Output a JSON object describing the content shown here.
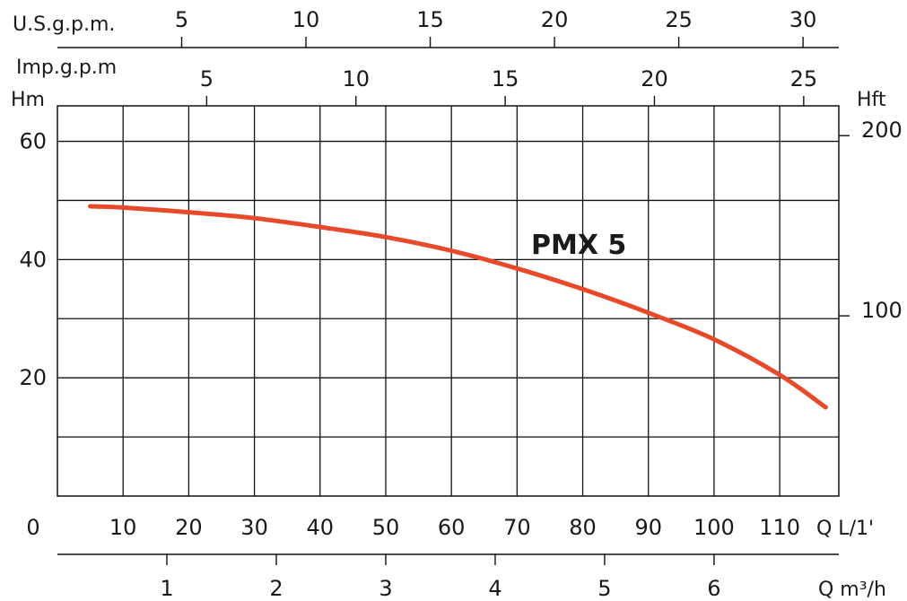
{
  "chart_data": {
    "type": "line",
    "title": "",
    "series": [
      {
        "name": "PMX 5",
        "color": "#e8492a",
        "x": [
          5,
          10,
          20,
          30,
          40,
          50,
          60,
          70,
          80,
          90,
          100,
          110,
          117
        ],
        "y": [
          49,
          48.8,
          48,
          47,
          45.5,
          43.8,
          41.5,
          38.5,
          35,
          31,
          26.5,
          20.5,
          15
        ]
      }
    ],
    "axes": {
      "x_bottom_label": "Q L/1'",
      "x_bottom_ticks": [
        0,
        10,
        20,
        30,
        40,
        50,
        60,
        70,
        80,
        90,
        100,
        110
      ],
      "x_bottom_range": [
        0,
        119
      ],
      "m3h_label": "Q m³/h",
      "m3h_ticks": [
        1,
        2,
        3,
        4,
        5,
        6
      ],
      "usgpm_label": "U.S.g.p.m.",
      "usgpm_ticks": [
        5,
        10,
        15,
        20,
        25,
        30
      ],
      "impgpm_label": "Imp.g.p.m",
      "impgpm_ticks": [
        5,
        10,
        15,
        20,
        25
      ],
      "y_left_label": "Hm",
      "y_left_ticks": [
        20,
        40,
        60
      ],
      "y_left_range": [
        0,
        66
      ],
      "y_right_label": "Hft",
      "y_right_ticks": [
        100,
        200
      ]
    },
    "grid": true
  }
}
